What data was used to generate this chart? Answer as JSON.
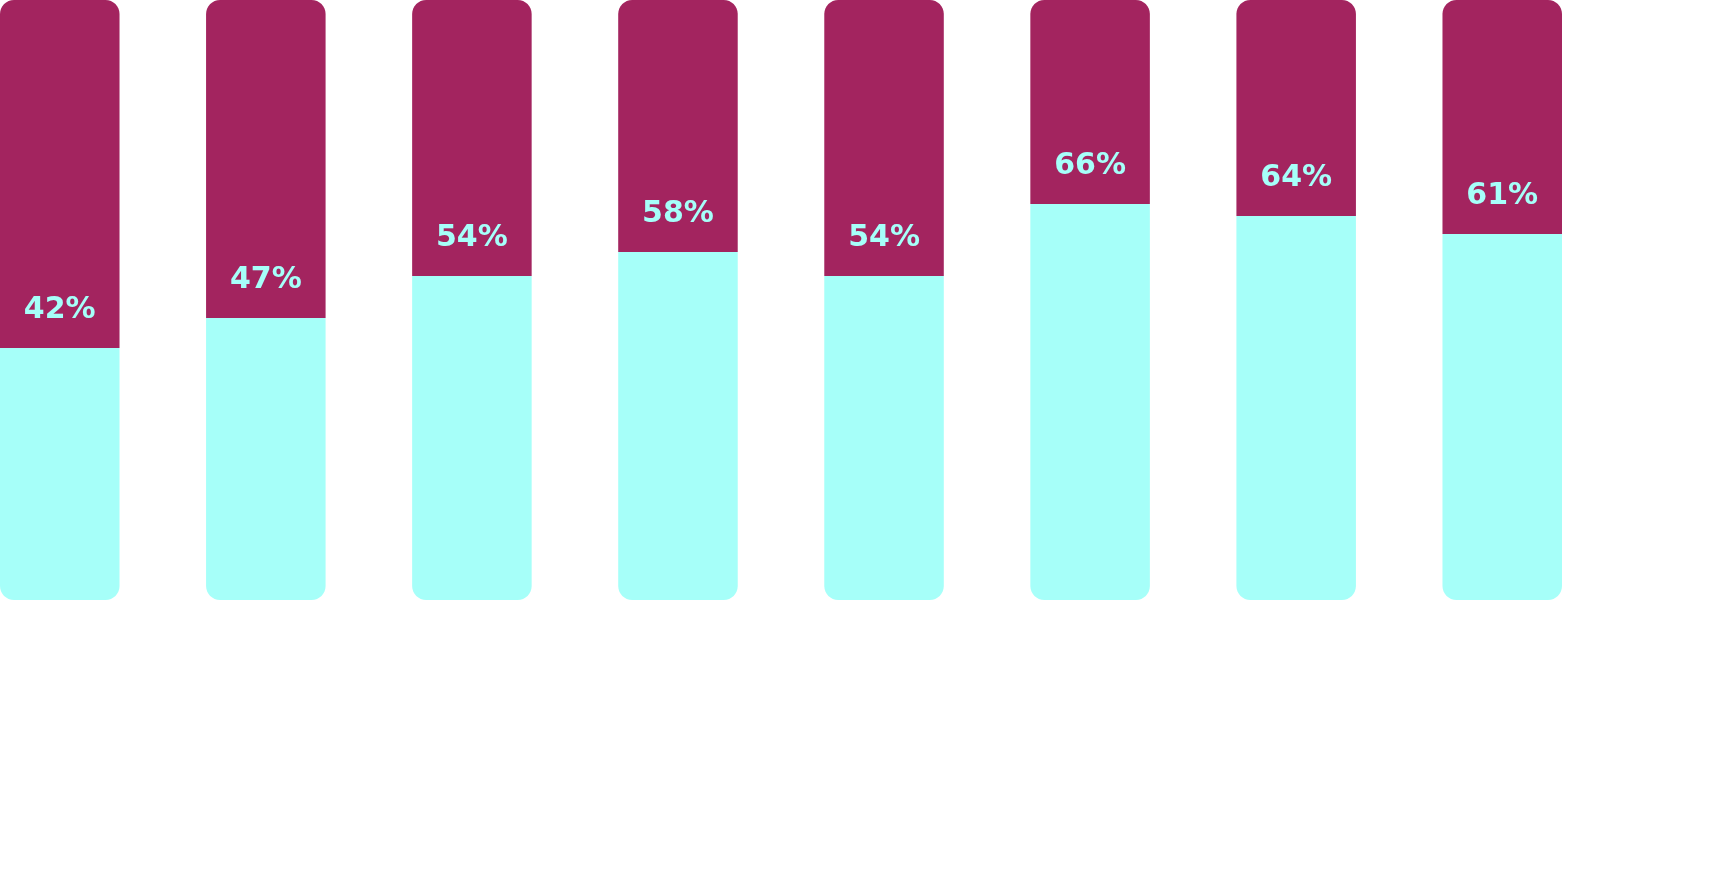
{
  "chart_data": {
    "type": "bar",
    "stacked": true,
    "categories": [
      null,
      null,
      null,
      null,
      null,
      null,
      null,
      null
    ],
    "series": [
      {
        "color": "#a6fff9",
        "values": [
          42,
          47,
          54,
          58,
          54,
          66,
          64,
          61
        ],
        "value_labels": [
          "42%",
          "47%",
          "54%",
          "58%",
          "54%",
          "66%",
          "64%",
          "61%"
        ]
      },
      {
        "color": "#a3245f",
        "values": [
          58,
          53,
          46,
          42,
          46,
          34,
          36,
          39
        ]
      }
    ]
  }
}
